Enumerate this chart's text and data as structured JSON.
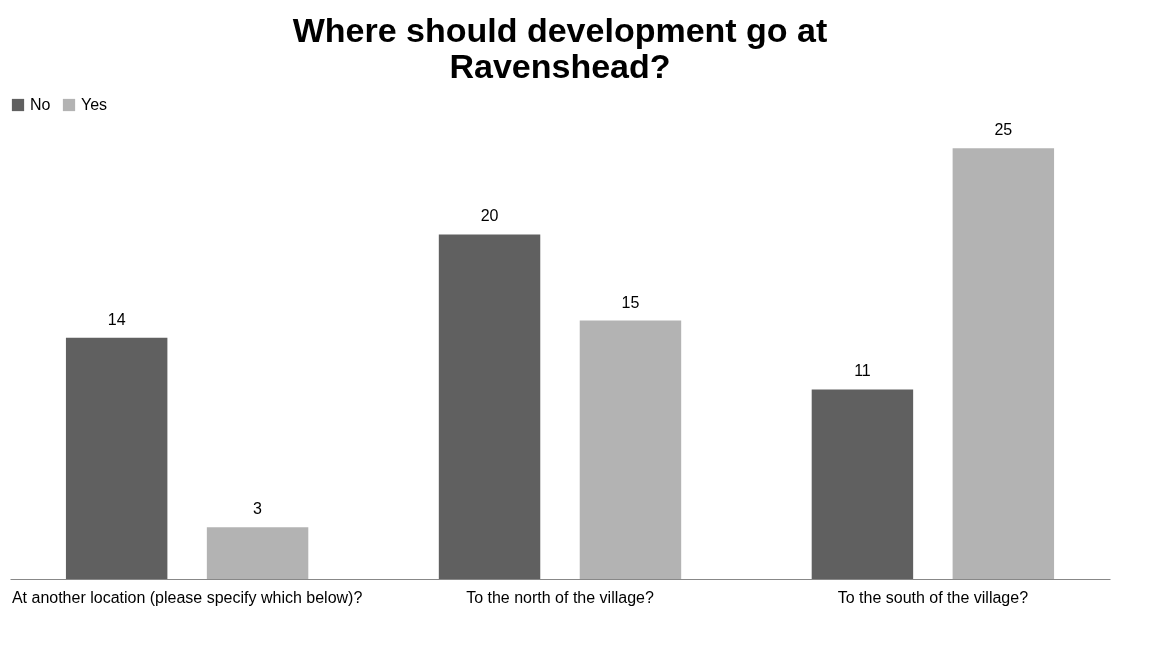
{
  "chart_data": {
    "type": "bar",
    "title": "Where should development go at Ravenshead?",
    "categories": [
      "At another location (please specify which below)?",
      "To the north of the village?",
      "To the south of the village?"
    ],
    "series": [
      {
        "name": "No",
        "color": "#606060",
        "values": [
          14,
          20,
          11
        ]
      },
      {
        "name": "Yes",
        "color": "#b3b3b3",
        "values": [
          3,
          15,
          25
        ]
      }
    ],
    "data_labels": true,
    "legend": "top",
    "grid": false
  }
}
